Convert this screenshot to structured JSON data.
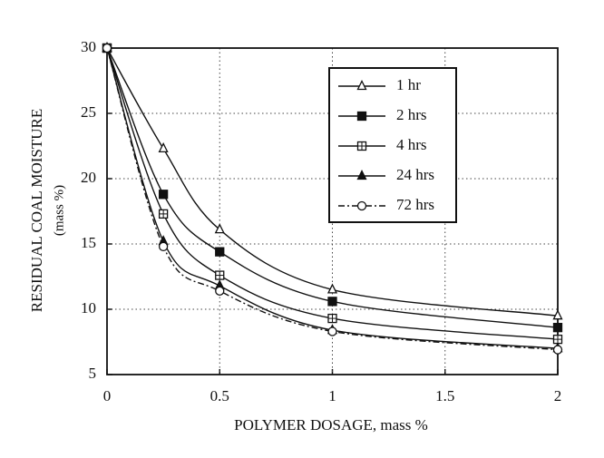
{
  "chart_data": {
    "type": "line",
    "xlabel": "POLYMER DOSAGE, mass %",
    "ylabel": [
      "RESIDUAL COAL MOISTURE",
      "(mass %)"
    ],
    "x": [
      0,
      0.25,
      0.5,
      1,
      2
    ],
    "xlim": [
      0,
      2
    ],
    "xticks": [
      0,
      0.5,
      1,
      1.5,
      2
    ],
    "ylim": [
      5,
      30
    ],
    "yticks": [
      5,
      10,
      15,
      20,
      25,
      30
    ],
    "grid": true,
    "legend": "upper right",
    "series": [
      {
        "name": "1 hr",
        "color": "#111111",
        "marker": "open-triangle",
        "line_style": "solid",
        "values": [
          30,
          22.3,
          16.1,
          11.5,
          9.5
        ]
      },
      {
        "name": "2 hrs",
        "color": "#111111",
        "marker": "filled-square",
        "line_style": "solid",
        "values": [
          30,
          18.8,
          14.4,
          10.6,
          8.6
        ]
      },
      {
        "name": "4 hrs",
        "color": "#111111",
        "marker": "crossed-square",
        "line_style": "solid",
        "values": [
          30,
          17.3,
          12.6,
          9.3,
          7.7
        ]
      },
      {
        "name": "24 hrs",
        "color": "#111111",
        "marker": "filled-triangle",
        "line_style": "solid",
        "values": [
          30,
          15.2,
          11.8,
          8.4,
          7.0
        ]
      },
      {
        "name": "72 hrs",
        "color": "#111111",
        "marker": "open-circle",
        "line_style": "dash-dot",
        "values": [
          30,
          14.8,
          11.4,
          8.3,
          6.9
        ]
      }
    ]
  }
}
